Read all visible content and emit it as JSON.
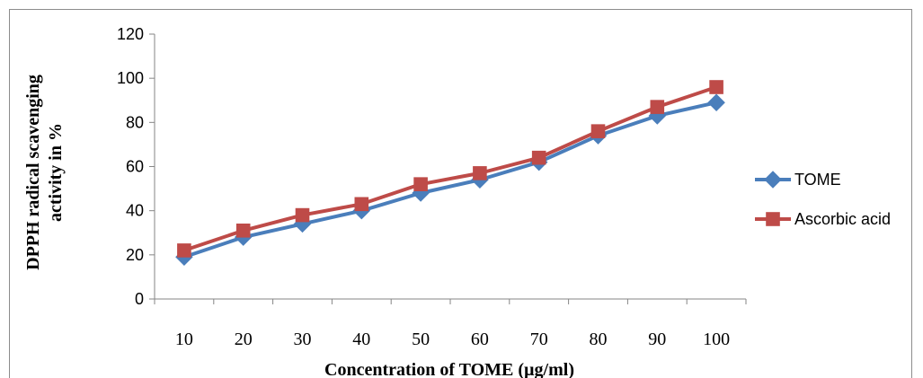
{
  "chart_data": {
    "type": "line",
    "title": "",
    "xlabel": "Concentration of TOME (µg/ml)",
    "ylabel_lines": [
      "DPPH radical scavenging",
      "activity in %"
    ],
    "categories": [
      "10",
      "20",
      "30",
      "40",
      "50",
      "60",
      "70",
      "80",
      "90",
      "100"
    ],
    "yticks": [
      "0",
      "20",
      "40",
      "60",
      "80",
      "100",
      "120"
    ],
    "ylim": [
      0,
      120
    ],
    "grid": false,
    "legend_position": "right",
    "series": [
      {
        "name": "TOME",
        "color": "#4a7ebb",
        "marker": "diamond",
        "values": [
          19,
          28,
          34,
          40,
          48,
          54,
          62,
          74,
          83,
          89
        ]
      },
      {
        "name": "Ascorbic acid",
        "color": "#be4b48",
        "marker": "square",
        "values": [
          22,
          31,
          38,
          43,
          52,
          57,
          64,
          76,
          87,
          96
        ]
      }
    ]
  }
}
